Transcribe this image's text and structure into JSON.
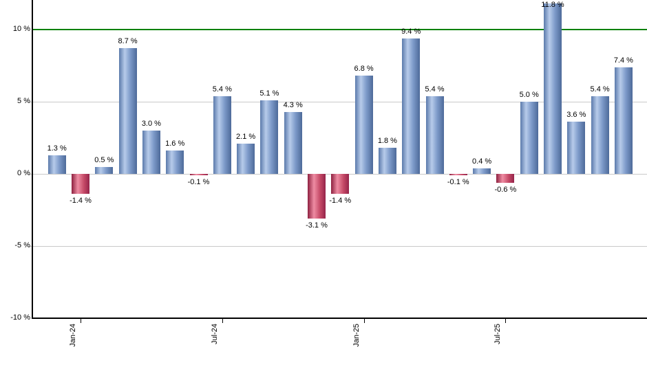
{
  "chart_data": {
    "type": "bar",
    "values": [
      1.3,
      -1.4,
      0.5,
      8.7,
      3.0,
      1.6,
      -0.1,
      5.4,
      2.1,
      5.1,
      4.3,
      -3.1,
      -1.4,
      6.8,
      1.8,
      9.4,
      5.4,
      -0.1,
      0.4,
      -0.6,
      5.0,
      11.8,
      3.6,
      5.4,
      7.4
    ],
    "bar_labels": [
      "1.3 %",
      "-1.4 %",
      "0.5 %",
      "8.7 %",
      "3.0 %",
      "1.6 %",
      "-0.1 %",
      "5.4 %",
      "2.1 %",
      "5.1 %",
      "4.3 %",
      "-3.1 %",
      "-1.4 %",
      "6.8 %",
      "1.8 %",
      "9.4 %",
      "5.4 %",
      "-0.1 %",
      "0.4 %",
      "-0.6 %",
      "5.0 %",
      "11.8 %",
      "3.6 %",
      "5.4 %",
      "7.4 %"
    ],
    "x_ticks": [
      {
        "label": "Jan-24",
        "bar_index": 1
      },
      {
        "label": "Jul-24",
        "bar_index": 7
      },
      {
        "label": "Jan-25",
        "bar_index": 13
      },
      {
        "label": "Jul-25",
        "bar_index": 19
      }
    ],
    "y_ticks": [
      {
        "label": "10 %",
        "value": 10
      },
      {
        "label": "5 %",
        "value": 5
      },
      {
        "label": "0 %",
        "value": 0
      },
      {
        "label": "-5 %",
        "value": -5
      },
      {
        "label": "-10 %",
        "value": -10
      }
    ],
    "ylim": [
      -10,
      12
    ],
    "grid": true,
    "legend": "none",
    "reference_line": {
      "value": 10,
      "color": "#008000"
    },
    "colors": {
      "positive_bar_gradient": [
        "#5b7aab",
        "#b7cbea",
        "#7e9bca",
        "#4d6a99"
      ],
      "negative_bar_gradient": [
        "#8e2040",
        "#ee8ca2",
        "#c44866",
        "#95244a"
      ],
      "gridline": "#c9c9c9",
      "axis": "#000000",
      "label_text": "#000000"
    }
  }
}
